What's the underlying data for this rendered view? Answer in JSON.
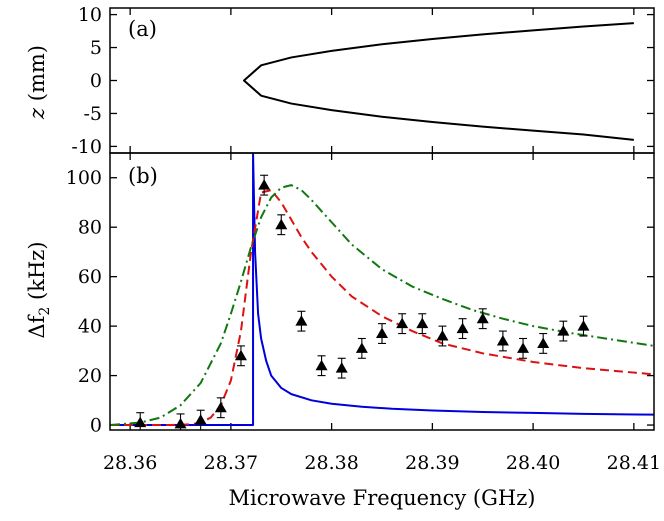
{
  "chart_data": [
    {
      "panel": "(a)",
      "type": "line",
      "ylabel_var": "z",
      "ylabel_unit": "(mm)",
      "xlim": [
        28.358,
        28.412
      ],
      "ylim": [
        -11,
        11
      ],
      "yticks": [
        10,
        5,
        0,
        -5,
        -10
      ],
      "ytick_labels": [
        "10",
        "5",
        "0",
        "-5",
        "-10"
      ],
      "series": [
        {
          "color": "#000000",
          "style": "solid",
          "x": [
            28.41,
            28.405,
            28.4,
            28.395,
            28.39,
            28.385,
            28.38,
            28.376,
            28.373,
            28.3713,
            28.373,
            28.376,
            28.38,
            28.385,
            28.39,
            28.395,
            28.4,
            28.405,
            28.41
          ],
          "y": [
            8.7,
            8.2,
            7.6,
            7.0,
            6.3,
            5.5,
            4.5,
            3.5,
            2.3,
            0.0,
            -2.3,
            -3.5,
            -4.5,
            -5.5,
            -6.3,
            -7.0,
            -7.6,
            -8.2,
            -9.0
          ]
        }
      ]
    },
    {
      "panel": "(b)",
      "type": "line+scatter",
      "xlabel": "Microwave Frequency (GHz)",
      "ylabel_sym": "Δf",
      "ylabel_sub": "2",
      "ylabel_unit": "(kHz)",
      "xlim": [
        28.358,
        28.412
      ],
      "ylim": [
        -2,
        110
      ],
      "xticks": [
        28.36,
        28.37,
        28.38,
        28.39,
        28.4,
        28.41
      ],
      "xtick_labels": [
        "28.36",
        "28.37",
        "28.38",
        "28.39",
        "28.40",
        "28.41"
      ],
      "yticks": [
        0,
        20,
        40,
        60,
        80,
        100
      ],
      "ytick_labels": [
        "0",
        "20",
        "40",
        "60",
        "80",
        "100"
      ],
      "series": [
        {
          "color": "#0000dd",
          "style": "solid",
          "x": [
            28.358,
            28.3722,
            28.3722,
            28.3722,
            28.3724,
            28.3727,
            28.373,
            28.3735,
            28.374,
            28.375,
            28.376,
            28.378,
            28.38,
            28.383,
            28.386,
            28.39,
            28.395,
            28.4,
            28.405,
            28.412
          ],
          "y": [
            0,
            0,
            0.5,
            110,
            70,
            45,
            35,
            26,
            20,
            15,
            12.5,
            10,
            8.6,
            7.4,
            6.6,
            5.9,
            5.3,
            4.9,
            4.5,
            4.2
          ]
        },
        {
          "color": "#dd1111",
          "style": "dashed",
          "x": [
            28.358,
            28.361,
            28.364,
            28.366,
            28.367,
            28.368,
            28.369,
            28.37,
            28.371,
            28.372,
            28.373,
            28.374,
            28.375,
            28.376,
            28.377,
            28.378,
            28.38,
            28.382,
            28.385,
            28.388,
            28.391,
            28.395,
            28.4,
            28.405,
            28.412
          ],
          "y": [
            0,
            0,
            0,
            0.3,
            1,
            3,
            8,
            18,
            38,
            70,
            94,
            95,
            90,
            83,
            76,
            70,
            60,
            52,
            44,
            38,
            33,
            29,
            25.5,
            23,
            20.5
          ]
        },
        {
          "color": "#117711",
          "style": "dashdot",
          "x": [
            28.358,
            28.361,
            28.363,
            28.365,
            28.367,
            28.369,
            28.37,
            28.371,
            28.372,
            28.373,
            28.374,
            28.375,
            28.376,
            28.377,
            28.378,
            28.38,
            28.382,
            28.385,
            28.388,
            28.391,
            28.394,
            28.397,
            28.4,
            28.404,
            28.408,
            28.412
          ],
          "y": [
            0,
            1,
            3,
            8,
            17,
            33,
            45,
            58,
            72,
            84,
            92,
            96,
            97,
            95,
            91,
            82,
            73,
            63,
            56,
            51,
            46.5,
            43,
            40,
            37,
            34.5,
            32
          ]
        }
      ],
      "points": {
        "marker": "triangle",
        "x": [
          28.361,
          28.365,
          28.367,
          28.369,
          28.371,
          28.3733,
          28.375,
          28.377,
          28.379,
          28.381,
          28.383,
          28.385,
          28.387,
          28.389,
          28.391,
          28.393,
          28.395,
          28.397,
          28.399,
          28.401,
          28.403,
          28.405
        ],
        "y": [
          1,
          0.5,
          2,
          7,
          28,
          97,
          81,
          42,
          24,
          23,
          31,
          37,
          41,
          41,
          36,
          39,
          43,
          34,
          31,
          33,
          38,
          40
        ],
        "err": [
          4,
          4,
          4,
          4,
          4,
          4,
          4,
          4,
          4,
          4,
          4,
          4,
          4,
          4,
          4,
          4,
          4,
          4,
          4,
          4,
          4,
          4
        ]
      }
    }
  ]
}
